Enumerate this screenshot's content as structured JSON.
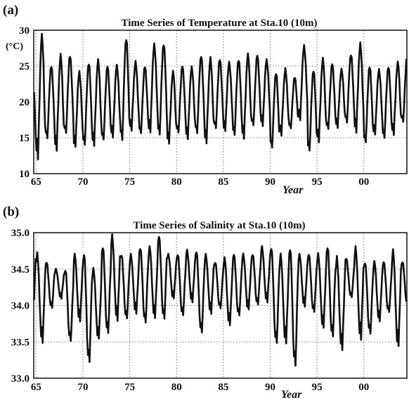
{
  "chart_data": [
    {
      "type": "line",
      "panel_label": "(a)",
      "title": "Time Series of Temperature at Sta.10  (10m)",
      "ylabel": "(°C)",
      "xlabel": "Year",
      "xlim": [
        1964.75,
        2004.6
      ],
      "ylim": [
        10,
        30
      ],
      "x_ticks": [
        1965,
        1970,
        1975,
        1980,
        1985,
        1990,
        1995,
        2000
      ],
      "x_tick_labels": [
        "65",
        "70",
        "75",
        "80",
        "85",
        "90",
        "95",
        "00"
      ],
      "y_ticks": [
        10,
        15,
        20,
        25,
        30
      ],
      "y_tick_labels": [
        "10",
        "15",
        "20",
        "25",
        "30"
      ],
      "grid": true,
      "series": [
        {
          "annual_max": [
            24.5,
            29.2,
            25.0,
            26.4,
            26.5,
            24.2,
            25.5,
            25.8,
            25.0,
            25.0,
            28.8,
            25.5,
            25.0,
            28.0,
            28.2,
            24.2,
            25.0,
            24.8,
            26.4,
            26.0,
            26.0,
            25.5,
            26.0,
            26.6,
            26.5,
            25.8,
            24.0,
            24.5,
            23.5,
            27.8,
            24.5,
            26.0,
            25.3,
            24.5,
            26.6,
            28.0,
            25.0,
            24.5,
            25.0,
            25.5,
            26.5
          ],
          "annual_min": [
            12.5,
            12.3,
            14.8,
            13.5,
            15.5,
            13.8,
            13.8,
            14.0,
            14.5,
            15.2,
            14.5,
            16.2,
            15.5,
            15.8,
            15.2,
            14.3,
            15.5,
            15.0,
            15.5,
            14.5,
            16.2,
            16.0,
            15.2,
            15.0,
            16.5,
            16.8,
            13.5,
            15.5,
            16.2,
            17.5,
            13.0,
            14.5,
            16.0,
            16.5,
            17.0,
            16.0,
            14.2,
            15.5,
            14.8,
            15.5,
            17.0
          ]
        }
      ]
    },
    {
      "type": "line",
      "panel_label": "(b)",
      "title": "Time Series of Salinity at Sta.10  (10m)",
      "xlabel": "Year",
      "xlim": [
        1964.75,
        2004.6
      ],
      "ylim": [
        33.0,
        35.0
      ],
      "x_ticks": [
        1965,
        1970,
        1975,
        1980,
        1985,
        1990,
        1995,
        2000
      ],
      "x_tick_labels": [
        "65",
        "70",
        "75",
        "80",
        "85",
        "90",
        "95",
        "00"
      ],
      "y_ticks": [
        33.0,
        33.5,
        34.0,
        34.5,
        35.0
      ],
      "y_tick_labels": [
        "33.0",
        "33.5",
        "34.0",
        "34.5",
        "35.0"
      ],
      "grid": true,
      "series": [
        {
          "annual_max": [
            34.95,
            34.7,
            34.6,
            34.5,
            34.5,
            34.7,
            34.7,
            34.5,
            34.8,
            34.95,
            34.7,
            34.7,
            34.8,
            34.8,
            34.95,
            34.7,
            34.7,
            34.75,
            34.75,
            34.7,
            34.6,
            34.65,
            34.7,
            34.7,
            34.7,
            34.8,
            34.8,
            34.7,
            34.8,
            34.7,
            34.7,
            34.7,
            34.8,
            34.65,
            34.65,
            34.8,
            34.6,
            34.6,
            34.6,
            34.75,
            34.6
          ],
          "annual_min": [
            33.8,
            33.5,
            33.95,
            34.1,
            33.5,
            33.8,
            33.2,
            33.55,
            33.6,
            33.8,
            33.8,
            33.9,
            33.75,
            33.85,
            33.8,
            34.1,
            33.85,
            34.05,
            33.6,
            33.9,
            33.95,
            33.75,
            33.85,
            33.95,
            34.0,
            34.05,
            33.45,
            33.5,
            33.15,
            34.0,
            33.9,
            33.7,
            33.55,
            33.4,
            34.1,
            33.55,
            33.6,
            33.8,
            33.9,
            33.45,
            34.0
          ]
        }
      ]
    }
  ]
}
